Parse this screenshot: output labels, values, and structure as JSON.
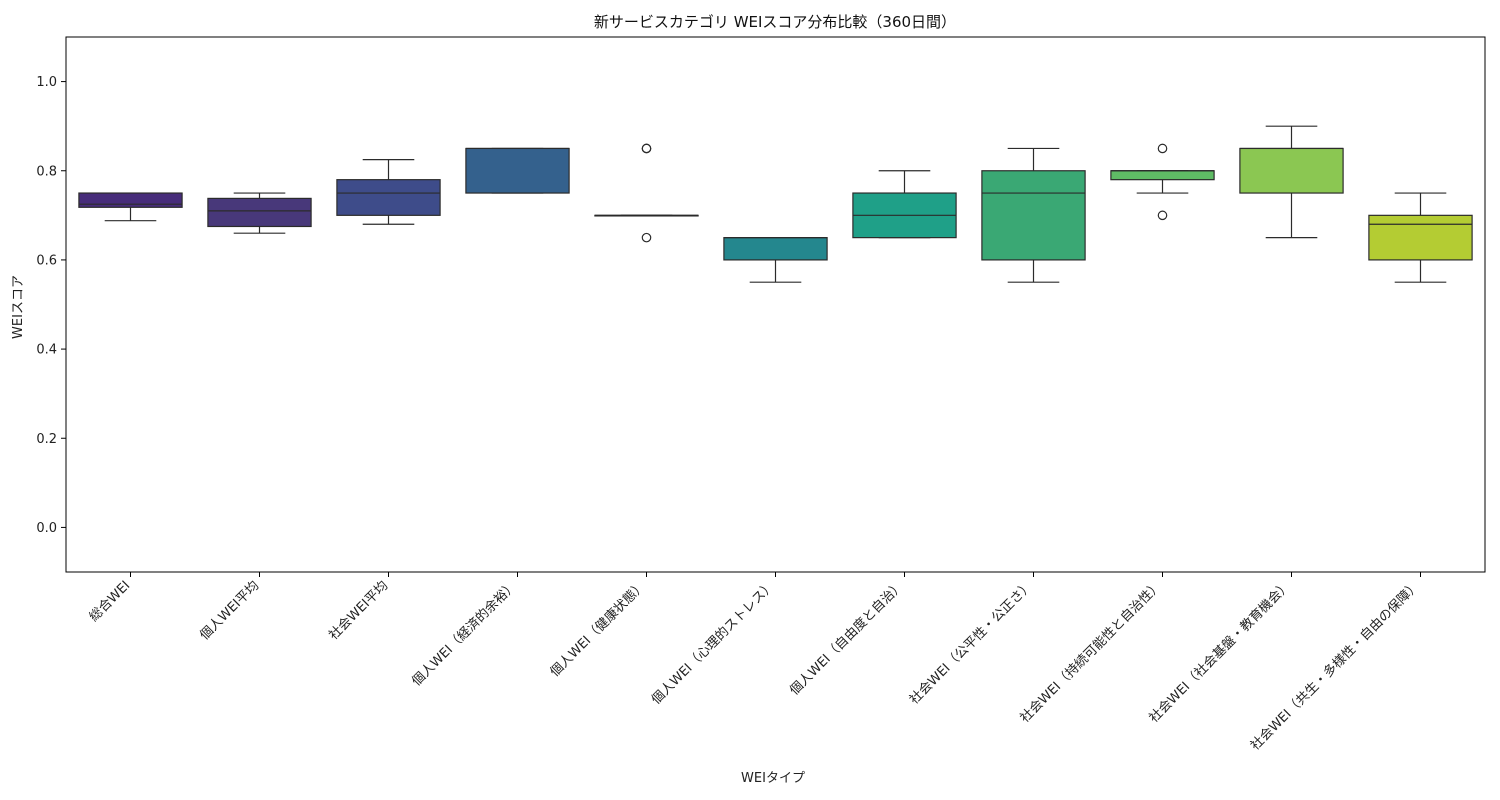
{
  "chart_data": {
    "type": "box",
    "title": "新サービスカテゴリ WEIスコア分布比較（360日間）",
    "xlabel": "WEIタイプ",
    "ylabel": "WEIスコア",
    "ylim": [
      -0.1,
      1.1
    ],
    "yticks": [
      "0.0",
      "0.2",
      "0.4",
      "0.6",
      "0.8",
      "1.0"
    ],
    "grid": false,
    "categories": [
      "総合WEI",
      "個人WEI平均",
      "社会WEI平均",
      "個人WEI（経済的余裕）",
      "個人WEI（健康状態）",
      "個人WEI（心理的ストレス）",
      "個人WEI（自由度と自治）",
      "社会WEI（公平性・公正さ）",
      "社会WEI（持続可能性と自治性）",
      "社会WEI（社会基盤・教育機会）",
      "社会WEI（共生・多様性・自由の保障）"
    ],
    "boxes": [
      {
        "whisker_low": 0.688,
        "q1": 0.718,
        "median": 0.725,
        "q3": 0.75,
        "whisker_high": 0.75,
        "outliers": [],
        "color": "#472c7a"
      },
      {
        "whisker_low": 0.66,
        "q1": 0.675,
        "median": 0.71,
        "q3": 0.738,
        "whisker_high": 0.75,
        "outliers": [],
        "color": "#48387a"
      },
      {
        "whisker_low": 0.68,
        "q1": 0.7,
        "median": 0.75,
        "q3": 0.78,
        "whisker_high": 0.825,
        "outliers": [],
        "color": "#3e4c8a"
      },
      {
        "whisker_low": 0.75,
        "q1": 0.75,
        "median": 0.85,
        "q3": 0.85,
        "whisker_high": 0.85,
        "outliers": [],
        "color": "#34618d"
      },
      {
        "whisker_low": 0.7,
        "q1": 0.7,
        "median": 0.7,
        "q3": 0.7,
        "whisker_high": 0.7,
        "outliers": [
          0.85,
          0.85,
          0.65
        ],
        "color": "#2c728e"
      },
      {
        "whisker_low": 0.55,
        "q1": 0.6,
        "median": 0.65,
        "q3": 0.65,
        "whisker_high": 0.65,
        "outliers": [],
        "color": "#24878e"
      },
      {
        "whisker_low": 0.65,
        "q1": 0.65,
        "median": 0.7,
        "q3": 0.75,
        "whisker_high": 0.8,
        "outliers": [],
        "color": "#1fa088"
      },
      {
        "whisker_low": 0.55,
        "q1": 0.6,
        "median": 0.75,
        "q3": 0.8,
        "whisker_high": 0.85,
        "outliers": [],
        "color": "#3aa874"
      },
      {
        "whisker_low": 0.75,
        "q1": 0.78,
        "median": 0.8,
        "q3": 0.8,
        "whisker_high": 0.8,
        "outliers": [
          0.85,
          0.7
        ],
        "color": "#5fbc65"
      },
      {
        "whisker_low": 0.65,
        "q1": 0.75,
        "median": 0.85,
        "q3": 0.85,
        "whisker_high": 0.9,
        "outliers": [],
        "color": "#8bc752"
      },
      {
        "whisker_low": 0.55,
        "q1": 0.6,
        "median": 0.68,
        "q3": 0.7,
        "whisker_high": 0.75,
        "outliers": [],
        "color": "#b4cc33"
      }
    ]
  }
}
